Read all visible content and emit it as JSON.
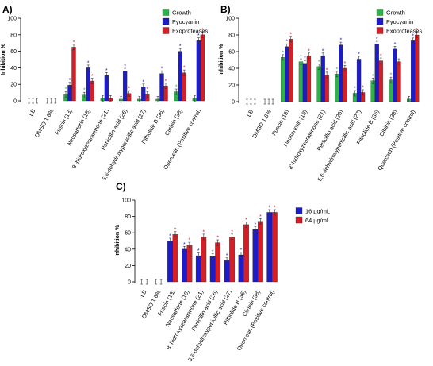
{
  "chart_data": [
    {
      "panel": "A)",
      "type": "bar",
      "ylabel": "Inhibition %",
      "ylim": [
        0,
        100
      ],
      "yticks": [
        0,
        20,
        40,
        60,
        80,
        100
      ],
      "legend": "top-right",
      "categories": [
        "LB",
        "DMSO 1.6%",
        "Fuscin (13)",
        "Neosartorin (18)",
        "8'-hidroxyzearalenone (21)",
        "Penicillin acid (26)",
        "5,6-dehydroxypenicillic acid (27)",
        "Pitholide B (36)",
        "Citrinin (38)",
        "Quercetin (Positive control)"
      ],
      "series": [
        {
          "name": "Growth",
          "color": "#2db34a",
          "values": [
            0,
            0,
            8,
            7,
            3,
            2,
            2,
            2,
            11,
            3
          ],
          "stars": [
            false,
            false,
            true,
            true,
            false,
            false,
            false,
            false,
            true,
            false
          ]
        },
        {
          "name": "Pyocyanin",
          "color": "#1c1cc9",
          "values": [
            0,
            0,
            19,
            40,
            31,
            36,
            17,
            33,
            60,
            73
          ],
          "stars": [
            false,
            false,
            true,
            true,
            true,
            true,
            true,
            true,
            true,
            true
          ]
        },
        {
          "name": "Exoproteases",
          "color": "#d41f26",
          "values": [
            0,
            0,
            65,
            24,
            3,
            9,
            8,
            18,
            34,
            80
          ],
          "stars": [
            false,
            false,
            true,
            true,
            false,
            true,
            true,
            true,
            true,
            true
          ]
        }
      ]
    },
    {
      "panel": "B)",
      "type": "bar",
      "ylabel": "Inhibition %",
      "ylim": [
        0,
        100
      ],
      "yticks": [
        0,
        20,
        40,
        60,
        80,
        100
      ],
      "legend": "top-right",
      "categories": [
        "LB",
        "DMSO 1.6%",
        "Fuscin (13)",
        "Neosartorin (18)",
        "8'-hidroxyzearalenone (21)",
        "Penicillin acid (26)",
        "5,6-dehydroxypenicillic acid (27)",
        "Pitholide B (36)",
        "Citrinin (38)",
        "Quercetin (Positive control)"
      ],
      "series": [
        {
          "name": "Growth",
          "color": "#2db34a",
          "values": [
            0,
            0,
            53,
            48,
            42,
            33,
            10,
            25,
            26,
            3
          ],
          "stars": [
            false,
            false,
            true,
            true,
            true,
            true,
            true,
            true,
            true,
            false
          ]
        },
        {
          "name": "Pyocyanin",
          "color": "#1c1cc9",
          "values": [
            0,
            0,
            66,
            46,
            55,
            68,
            51,
            69,
            63,
            73
          ],
          "stars": [
            false,
            false,
            true,
            true,
            true,
            true,
            true,
            true,
            true,
            true
          ]
        },
        {
          "name": "Exoproteases",
          "color": "#d41f26",
          "values": [
            0,
            0,
            75,
            55,
            32,
            40,
            11,
            49,
            48,
            80
          ],
          "stars": [
            false,
            false,
            true,
            true,
            true,
            true,
            true,
            true,
            false,
            true
          ]
        }
      ]
    },
    {
      "panel": "C)",
      "type": "bar",
      "ylabel": "Inhibition %",
      "ylim": [
        0,
        100
      ],
      "yticks": [
        0,
        20,
        40,
        60,
        80,
        100
      ],
      "legend": "top-right",
      "categories": [
        "LB",
        "DMSO 1.6%",
        "Fuscin (13)",
        "Neosartorin (18)",
        "8'-hidroxyzearalenone (21)",
        "Penicillin acid (26)",
        "5,6-dehydroxypenicillic acid (27)",
        "Pitholide B (36)",
        "Citrinin (38)",
        "Quercetin (Positive control)"
      ],
      "series": [
        {
          "name": "16 µg/mL",
          "color": "#1c1cc9",
          "values": [
            0,
            0,
            50,
            40,
            32,
            31,
            26,
            33,
            64,
            85
          ],
          "stars": [
            false,
            false,
            true,
            true,
            true,
            true,
            true,
            true,
            true,
            true
          ]
        },
        {
          "name": "64 µg/mL",
          "color": "#d41f26",
          "values": [
            0,
            0,
            58,
            45,
            55,
            48,
            55,
            70,
            74,
            85
          ],
          "stars": [
            false,
            false,
            true,
            true,
            true,
            true,
            true,
            true,
            true,
            true
          ]
        }
      ]
    }
  ],
  "star_symbol": "*"
}
